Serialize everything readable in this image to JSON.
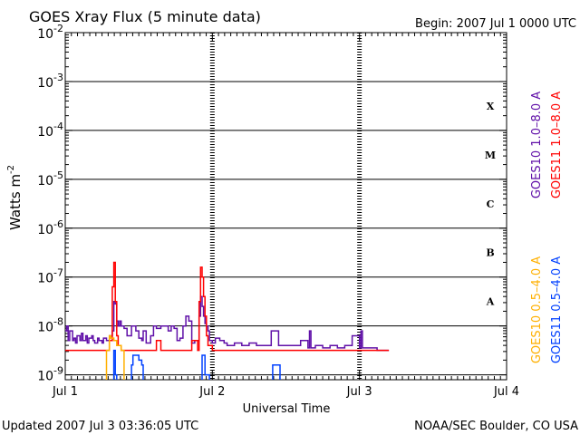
{
  "chart_data": {
    "type": "line",
    "title": "GOES Xray Flux (5 minute data)",
    "begin_label": "Begin:  2007 Jul 1 0000 UTC",
    "xlabel": "Universal Time",
    "ylabel": "Watts m",
    "ylabel_sup": "-2",
    "updated": "Updated 2007 Jul  3 03:36:05 UTC",
    "credit": "NOAA/SEC Boulder, CO USA",
    "x_range_days": [
      0,
      3
    ],
    "ylim_log10": [
      -9.1,
      -2
    ],
    "x_tick_labels": [
      "Jul 1",
      "Jul 2",
      "Jul 3",
      "Jul 4"
    ],
    "y_tick_exponents": [
      -9,
      -8,
      -7,
      -6,
      -5,
      -4,
      -3,
      -2
    ],
    "y_tick_base": "10",
    "flare_classes": [
      {
        "label": "A",
        "log10": -7.5
      },
      {
        "label": "B",
        "log10": -6.5
      },
      {
        "label": "C",
        "log10": -5.5
      },
      {
        "label": "M",
        "log10": -4.5
      },
      {
        "label": "X",
        "log10": -3.5
      }
    ],
    "series": [
      {
        "name": "GOES10 1.0–8.0 A",
        "color": "#6010a8",
        "axis": "right",
        "x": [
          0.0,
          0.01,
          0.02,
          0.03,
          0.05,
          0.06,
          0.07,
          0.08,
          0.1,
          0.11,
          0.12,
          0.14,
          0.15,
          0.16,
          0.18,
          0.19,
          0.2,
          0.22,
          0.23,
          0.25,
          0.26,
          0.28,
          0.3,
          0.32,
          0.33,
          0.34,
          0.35,
          0.36,
          0.37,
          0.38,
          0.4,
          0.42,
          0.45,
          0.48,
          0.5,
          0.52,
          0.53,
          0.55,
          0.58,
          0.6,
          0.62,
          0.65,
          0.68,
          0.7,
          0.72,
          0.74,
          0.76,
          0.78,
          0.8,
          0.82,
          0.84,
          0.86,
          0.88,
          0.9,
          0.91,
          0.92,
          0.93,
          0.94,
          0.95,
          0.96,
          0.97,
          0.98,
          1.0,
          1.02,
          1.05,
          1.08,
          1.1,
          1.15,
          1.2,
          1.25,
          1.3,
          1.35,
          1.4,
          1.45,
          1.5,
          1.55,
          1.6,
          1.65,
          1.66,
          1.67,
          1.7,
          1.75,
          1.8,
          1.85,
          1.9,
          1.95,
          2.0,
          2.01,
          2.02,
          2.05,
          2.1,
          2.12,
          2.15,
          2.2
        ],
        "log10": [
          -8.1,
          -8.0,
          -8.3,
          -8.1,
          -8.3,
          -8.25,
          -8.35,
          -8.2,
          -8.3,
          -8.15,
          -8.3,
          -8.2,
          -8.35,
          -8.25,
          -8.2,
          -8.3,
          -8.35,
          -8.25,
          -8.3,
          -8.35,
          -8.25,
          -8.3,
          -8.2,
          -8.1,
          -7.5,
          -7.55,
          -7.9,
          -8.0,
          -7.9,
          -8.0,
          -8.05,
          -8.2,
          -8.0,
          -8.1,
          -8.25,
          -8.3,
          -8.1,
          -8.35,
          -8.2,
          -8.0,
          -8.05,
          -8.0,
          -8.0,
          -8.1,
          -8.0,
          -8.05,
          -8.3,
          -8.25,
          -8.0,
          -7.8,
          -7.9,
          -8.35,
          -8.3,
          -8.3,
          -7.8,
          -7.4,
          -7.6,
          -7.8,
          -7.95,
          -8.0,
          -8.1,
          -8.3,
          -8.35,
          -8.25,
          -8.3,
          -8.35,
          -8.4,
          -8.35,
          -8.4,
          -8.35,
          -8.4,
          -8.4,
          -8.1,
          -8.4,
          -8.4,
          -8.4,
          -8.3,
          -8.45,
          -8.1,
          -8.45,
          -8.4,
          -8.45,
          -8.4,
          -8.45,
          -8.4,
          -8.2,
          -8.45,
          -8.1,
          -8.45,
          -8.45,
          -8.45,
          -8.5,
          -8.5,
          -8.5
        ]
      },
      {
        "name": "GOES11 1.0–8.0 A",
        "color": "#ff0000",
        "axis": "right",
        "x": [
          0.0,
          0.2,
          0.28,
          0.3,
          0.32,
          0.33,
          0.34,
          0.35,
          0.36,
          0.38,
          0.45,
          0.5,
          0.55,
          0.6,
          0.62,
          0.64,
          0.65,
          0.7,
          0.8,
          0.85,
          0.86,
          0.87,
          0.9,
          0.91,
          0.92,
          0.93,
          0.94,
          0.95,
          0.96,
          0.97,
          1.0,
          1.1,
          1.3,
          1.6,
          1.8,
          2.0,
          2.2
        ],
        "log10": [
          -8.5,
          -8.5,
          -8.5,
          -8.3,
          -7.2,
          -6.7,
          -7.5,
          -8.2,
          -8.4,
          -8.5,
          -8.5,
          -8.5,
          -8.5,
          -8.5,
          -8.3,
          -8.3,
          -8.5,
          -8.5,
          -8.5,
          -8.5,
          -8.3,
          -8.3,
          -8.5,
          -7.5,
          -6.8,
          -7.0,
          -7.4,
          -7.8,
          -8.2,
          -8.4,
          -8.5,
          -8.5,
          -8.5,
          -8.5,
          -8.5,
          -8.5,
          -8.5
        ]
      },
      {
        "name": "GOES10 0.5–4.0 A",
        "color": "#ffb000",
        "axis": "right",
        "x": [
          0.25,
          0.28,
          0.3,
          0.31,
          0.33,
          0.35,
          0.38,
          0.4
        ],
        "log10": [
          -9.5,
          -8.5,
          -8.2,
          -8.25,
          -8.3,
          -8.4,
          -8.5,
          -9.5
        ]
      },
      {
        "name": "GOES11 0.5–4.0 A",
        "color": "#0040ff",
        "axis": "right",
        "x": [
          0.3,
          0.32,
          0.33,
          0.34,
          0.35,
          0.36,
          0.38,
          0.45,
          0.46,
          0.5,
          0.52,
          0.53,
          0.6,
          0.92,
          0.93,
          0.95,
          0.98,
          1.0,
          1.4,
          1.41,
          1.45,
          1.46
        ],
        "log10": [
          -9.5,
          -9.2,
          -8.5,
          -9.0,
          -9.3,
          -9.5,
          -9.5,
          -8.8,
          -8.6,
          -8.7,
          -8.8,
          -9.5,
          -9.5,
          -9.5,
          -8.6,
          -9.0,
          -9.3,
          -9.5,
          -9.5,
          -8.8,
          -8.8,
          -9.5
        ]
      }
    ]
  }
}
